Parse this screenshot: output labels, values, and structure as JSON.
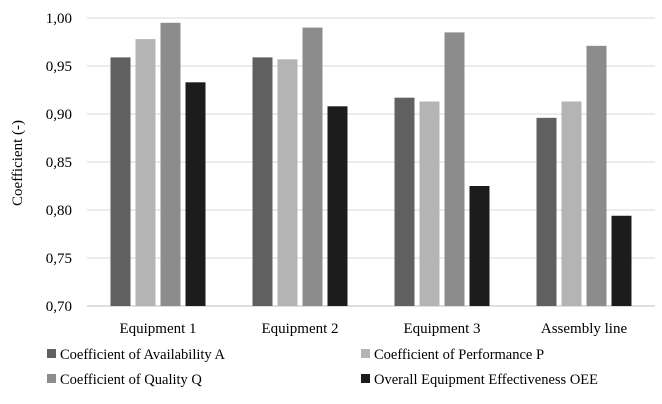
{
  "chart_data": {
    "type": "bar",
    "title": "",
    "xlabel": "",
    "ylabel": "Coefficient (-)",
    "ylim": [
      0.7,
      1.0
    ],
    "yticks": [
      0.7,
      0.75,
      0.8,
      0.85,
      0.9,
      0.95,
      1.0
    ],
    "ytick_labels": [
      "0,70",
      "0,75",
      "0,80",
      "0,85",
      "0,90",
      "0,95",
      "1,00"
    ],
    "grid": true,
    "legend_position": "bottom",
    "categories": [
      "Equipment 1",
      "Equipment 2",
      "Equipment 3",
      "Assembly line"
    ],
    "series": [
      {
        "name": "Coefficient of Availability A",
        "color": "#606060",
        "values": [
          0.959,
          0.959,
          0.917,
          0.896
        ]
      },
      {
        "name": "Coefficient of Performance P",
        "color": "#b4b4b4",
        "values": [
          0.978,
          0.957,
          0.913,
          0.913
        ]
      },
      {
        "name": "Coefficient of Quality Q",
        "color": "#8c8c8c",
        "values": [
          0.995,
          0.99,
          0.985,
          0.971
        ]
      },
      {
        "name": "Overall Equipment Effectiveness OEE",
        "color": "#1c1c1c",
        "values": [
          0.933,
          0.908,
          0.825,
          0.794
        ]
      }
    ]
  }
}
